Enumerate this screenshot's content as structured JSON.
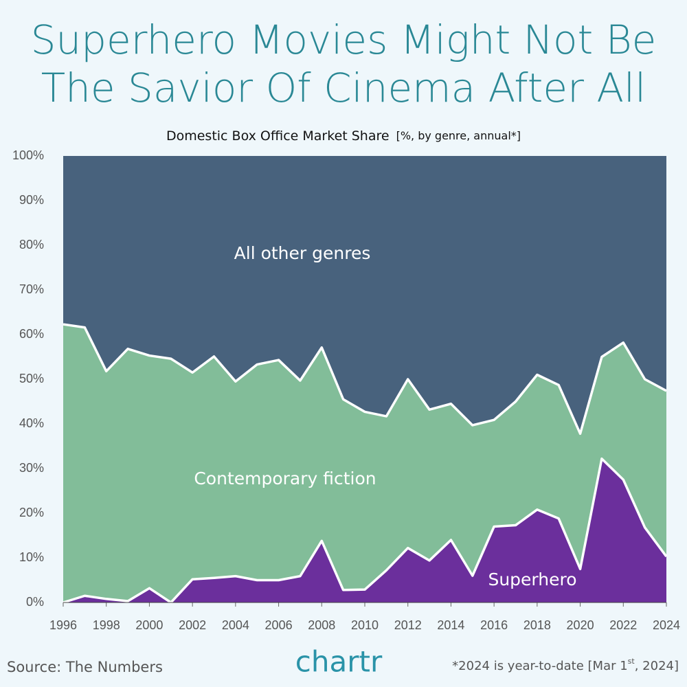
{
  "title": "Superhero Movies Might Not Be The Savior Of Cinema After All",
  "chart_data": {
    "type": "stacked_area",
    "subtitle": "Domestic Box Office Market Share",
    "subtitle_note": "[%, by genre, annual*]",
    "x": [
      1996,
      1997,
      1998,
      1999,
      2000,
      2001,
      2002,
      2003,
      2004,
      2005,
      2006,
      2007,
      2008,
      2009,
      2010,
      2011,
      2012,
      2013,
      2014,
      2015,
      2016,
      2017,
      2018,
      2019,
      2020,
      2021,
      2022,
      2023,
      2024
    ],
    "series": [
      {
        "name": "Superhero",
        "color": "#6b2f9c",
        "values": [
          0,
          1.5,
          0.8,
          0.3,
          3.2,
          0,
          5.2,
          5.5,
          5.9,
          5.0,
          5.0,
          5.9,
          13.8,
          2.8,
          2.9,
          7.2,
          12.2,
          9.4,
          14.0,
          6.0,
          17.0,
          17.3,
          20.8,
          18.8,
          7.5,
          32.2,
          27.5,
          16.8,
          10.3
        ]
      },
      {
        "name": "Contemporary fiction",
        "color": "#82bd99",
        "values": [
          62.3,
          60.1,
          51.0,
          56.5,
          52.1,
          54.6,
          46.3,
          49.6,
          43.6,
          48.3,
          49.3,
          43.8,
          43.3,
          42.7,
          39.8,
          34.5,
          37.8,
          33.8,
          30.5,
          33.7,
          23.9,
          27.7,
          30.2,
          29.9,
          30.3,
          22.8,
          30.7,
          33.2,
          37.1
        ]
      },
      {
        "name": "All other genres",
        "color": "#48627d",
        "values": [
          37.7,
          38.4,
          48.2,
          43.2,
          44.7,
          45.4,
          48.5,
          44.9,
          50.5,
          46.7,
          45.7,
          50.3,
          42.9,
          54.5,
          57.3,
          58.3,
          50.0,
          56.8,
          55.5,
          60.3,
          59.1,
          55.0,
          49.0,
          51.3,
          62.2,
          45.0,
          41.8,
          50.0,
          52.6
        ]
      }
    ],
    "xlim": [
      1996,
      2024
    ],
    "xticks": [
      1996,
      1998,
      2000,
      2002,
      2004,
      2006,
      2008,
      2010,
      2012,
      2014,
      2016,
      2018,
      2020,
      2022,
      2024
    ],
    "ylim": [
      0,
      100
    ],
    "yticks": [
      {
        "value": 0,
        "label": "0%"
      },
      {
        "value": 10,
        "label": "10%"
      },
      {
        "value": 20,
        "label": "20%"
      },
      {
        "value": 30,
        "label": "30%"
      },
      {
        "value": 40,
        "label": "40%"
      },
      {
        "value": 50,
        "label": "50%"
      },
      {
        "value": 60,
        "label": "60%"
      },
      {
        "value": 70,
        "label": "70%"
      },
      {
        "value": 80,
        "label": "80%"
      },
      {
        "value": 90,
        "label": "90%"
      },
      {
        "value": 100,
        "label": "100%"
      }
    ]
  },
  "footer": {
    "source": "Source: The Numbers",
    "brand": "chartr",
    "note": [
      "*2024 is year-to-date [Mar 1",
      "st",
      ", 2024]"
    ]
  }
}
